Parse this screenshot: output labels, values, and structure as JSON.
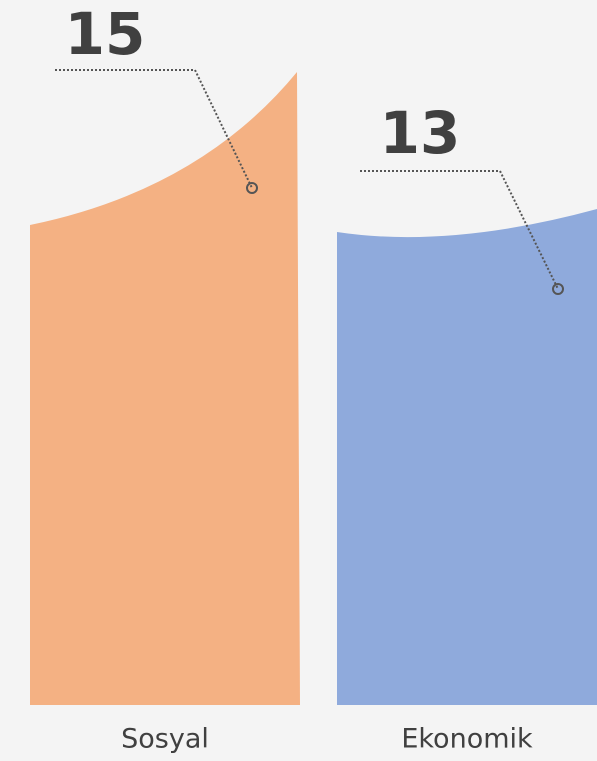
{
  "chart_data": {
    "type": "bar",
    "categories": [
      "Sosyal",
      "Ekonomik"
    ],
    "values": [
      15,
      13
    ],
    "colors": [
      "#f4b183",
      "#8faadc"
    ]
  }
}
